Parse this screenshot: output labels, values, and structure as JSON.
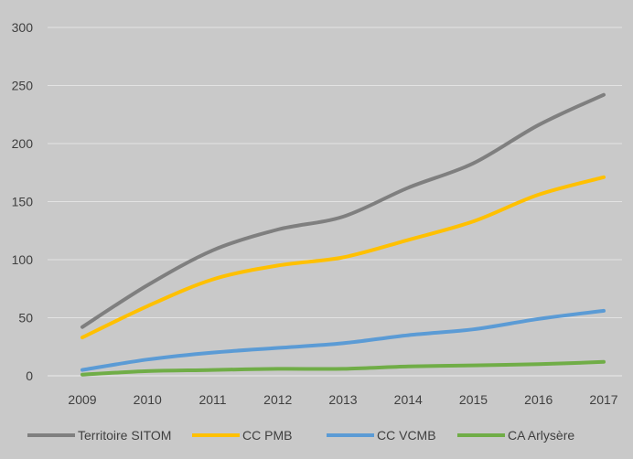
{
  "chart_data": {
    "type": "line",
    "x": [
      "2009",
      "2010",
      "2011",
      "2012",
      "2013",
      "2014",
      "2015",
      "2016",
      "2017"
    ],
    "series": [
      {
        "name": "Territoire SITOM",
        "color": "#7f7f7f",
        "values": [
          42,
          78,
          108,
          126,
          137,
          162,
          183,
          216,
          242
        ]
      },
      {
        "name": "CC PMB",
        "color": "#ffc000",
        "values": [
          33,
          60,
          83,
          95,
          102,
          117,
          133,
          156,
          171
        ]
      },
      {
        "name": "CC VCMB",
        "color": "#5b9bd5",
        "values": [
          5,
          14,
          20,
          24,
          28,
          35,
          40,
          49,
          56
        ]
      },
      {
        "name": "CA Arlysère",
        "color": "#70ad47",
        "values": [
          1,
          4,
          5,
          6,
          6,
          8,
          9,
          10,
          12
        ]
      }
    ],
    "y_ticks": [
      0,
      50,
      100,
      150,
      200,
      250,
      300
    ],
    "ylim": [
      0,
      300
    ],
    "grid": true,
    "legend_position": "bottom",
    "title": "",
    "xlabel": "",
    "ylabel": ""
  }
}
